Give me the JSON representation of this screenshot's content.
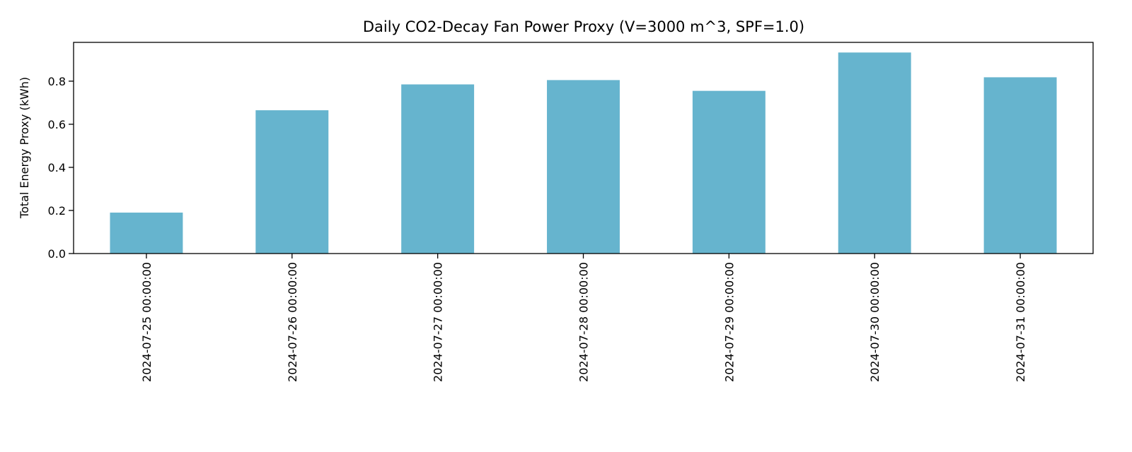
{
  "chart_data": {
    "type": "bar",
    "title": "Daily CO2-Decay Fan Power Proxy (V=3000 m^3, SPF=1.0)",
    "xlabel": "",
    "ylabel": "Total Energy Proxy (kWh)",
    "categories": [
      "2024-07-25 00:00:00",
      "2024-07-26 00:00:00",
      "2024-07-27 00:00:00",
      "2024-07-28 00:00:00",
      "2024-07-29 00:00:00",
      "2024-07-30 00:00:00",
      "2024-07-31 00:00:00"
    ],
    "values": [
      0.19,
      0.665,
      0.785,
      0.805,
      0.755,
      0.933,
      0.818
    ],
    "ylim": [
      0.0,
      0.98
    ],
    "yticks": [
      0.0,
      0.2,
      0.4,
      0.6,
      0.8
    ],
    "ytick_labels": [
      "0.0",
      "0.2",
      "0.4",
      "0.6",
      "0.8"
    ],
    "bar_color": "#66b4ce",
    "grid": false,
    "legend": "none"
  }
}
